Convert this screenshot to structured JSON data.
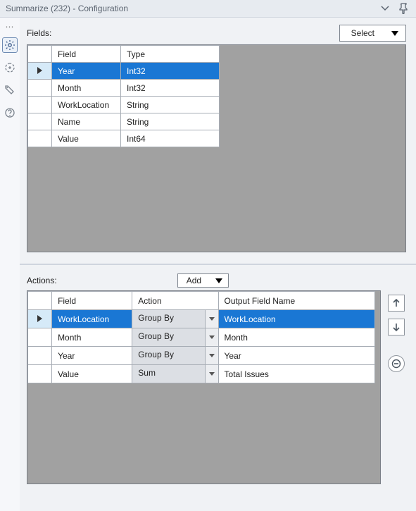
{
  "window": {
    "title": "Summarize (232) - Configuration"
  },
  "leftRail": {
    "icons": [
      "gear-icon",
      "target-icon",
      "tag-icon",
      "help-icon"
    ]
  },
  "fields": {
    "label": "Fields:",
    "selectLabel": "Select",
    "columns": {
      "field": "Field",
      "type": "Type"
    },
    "rows": [
      {
        "field": "Year",
        "type": "Int32",
        "selected": true
      },
      {
        "field": "Month",
        "type": "Int32",
        "selected": false
      },
      {
        "field": "WorkLocation",
        "type": "String",
        "selected": false
      },
      {
        "field": "Name",
        "type": "String",
        "selected": false
      },
      {
        "field": "Value",
        "type": "Int64",
        "selected": false
      }
    ]
  },
  "actions": {
    "label": "Actions:",
    "addLabel": "Add",
    "columns": {
      "field": "Field",
      "action": "Action",
      "output": "Output Field Name"
    },
    "rows": [
      {
        "field": "WorkLocation",
        "action": "Group By",
        "output": "WorkLocation",
        "selected": true
      },
      {
        "field": "Month",
        "action": "Group By",
        "output": "Month",
        "selected": false
      },
      {
        "field": "Year",
        "action": "Group By",
        "output": "Year",
        "selected": false
      },
      {
        "field": "Value",
        "action": "Sum",
        "output": "Total Issues",
        "selected": false
      }
    ]
  },
  "colors": {
    "selection": "#1a77d4",
    "selectionRowHeader": "#d6eaf8",
    "gridBg": "#a1a1a1",
    "border": "#a7adb5",
    "dropdownBg": "#dcdfe4"
  },
  "columnWidths": {
    "fieldsTable": {
      "rowhdr": 34,
      "field": 98,
      "type": 140
    },
    "actionsTable": {
      "rowhdr": 34,
      "field": 114,
      "action": 122,
      "output": 222
    }
  }
}
